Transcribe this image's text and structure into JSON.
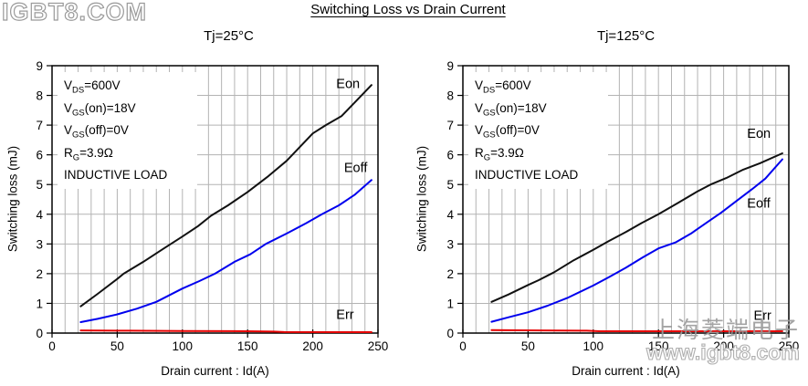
{
  "title": "Switching Loss vs Drain Current",
  "watermarks": {
    "top_left": "IGBT8.COM",
    "bottom_cn": "上海菱端电子",
    "bottom_url": "www.igbt8.com"
  },
  "colors": {
    "eon": "#111111",
    "eoff": "#0000ee",
    "err": "#e60000",
    "grid": "#b3b3b3",
    "frame": "#000000"
  },
  "charts": [
    {
      "annotations": [
        {
          "base": "V",
          "sub": "DS",
          "rest": "=600V"
        },
        {
          "base": "V",
          "sub": "GS",
          "rest": "(on)=18V"
        },
        {
          "base": "V",
          "sub": "GS",
          "rest": "(off)=0V"
        },
        {
          "base": "R",
          "sub": "G",
          "rest": "=3.9Ω"
        },
        {
          "base": "INDUCTIVE LOAD",
          "sub": "",
          "rest": ""
        }
      ]
    },
    {
      "annotations": [
        {
          "base": "V",
          "sub": "DS",
          "rest": "=600V"
        },
        {
          "base": "V",
          "sub": "GS",
          "rest": "(on)=18V"
        },
        {
          "base": "V",
          "sub": "GS",
          "rest": "(off)=0V"
        },
        {
          "base": "R",
          "sub": "G",
          "rest": "=3.9Ω"
        },
        {
          "base": "INDUCTIVE LOAD",
          "sub": "",
          "rest": ""
        }
      ]
    }
  ],
  "chart_data": [
    {
      "type": "line",
      "title": "Tj=25°C",
      "xlabel": "Drain current : Id(A)",
      "ylabel": "Switching loss (mJ)",
      "xlim": [
        0,
        250
      ],
      "ylim": [
        0,
        9
      ],
      "xticks": [
        "0",
        "50",
        "100",
        "150",
        "200",
        "250"
      ],
      "yticks": [
        "0",
        "1",
        "2",
        "3",
        "4",
        "5",
        "6",
        "7",
        "8",
        "9"
      ],
      "x_minor_step": 10,
      "y_grid_step": 1,
      "grid": true,
      "series": [
        {
          "name": "Eon",
          "color": "#111111",
          "label_pos": [
            218,
            8.25
          ],
          "points": [
            [
              22,
              0.9
            ],
            [
              35,
              1.32
            ],
            [
              50,
              1.82
            ],
            [
              55,
              2.0
            ],
            [
              70,
              2.4
            ],
            [
              85,
              2.83
            ],
            [
              100,
              3.25
            ],
            [
              112,
              3.6
            ],
            [
              122,
              3.95
            ],
            [
              135,
              4.3
            ],
            [
              150,
              4.75
            ],
            [
              165,
              5.25
            ],
            [
              180,
              5.8
            ],
            [
              200,
              6.72
            ],
            [
              210,
              7.0
            ],
            [
              222,
              7.3
            ],
            [
              233,
              7.8
            ],
            [
              245,
              8.35
            ]
          ]
        },
        {
          "name": "Eoff",
          "color": "#0000ee",
          "label_pos": [
            224,
            5.42
          ],
          "points": [
            [
              22,
              0.37
            ],
            [
              35,
              0.48
            ],
            [
              50,
              0.63
            ],
            [
              65,
              0.82
            ],
            [
              80,
              1.05
            ],
            [
              100,
              1.5
            ],
            [
              113,
              1.75
            ],
            [
              125,
              2.0
            ],
            [
              140,
              2.4
            ],
            [
              152,
              2.65
            ],
            [
              164,
              3.0
            ],
            [
              180,
              3.35
            ],
            [
              195,
              3.7
            ],
            [
              207,
              4.0
            ],
            [
              220,
              4.3
            ],
            [
              232,
              4.65
            ],
            [
              245,
              5.15
            ]
          ]
        },
        {
          "name": "Err",
          "color": "#e60000",
          "label_pos": [
            218,
            0.48
          ],
          "points": [
            [
              22,
              0.09
            ],
            [
              60,
              0.08
            ],
            [
              100,
              0.07
            ],
            [
              150,
              0.06
            ],
            [
              170,
              0.05
            ],
            [
              178,
              0.035
            ],
            [
              245,
              0.03
            ]
          ]
        }
      ]
    },
    {
      "type": "line",
      "title": "Tj=125°C",
      "xlabel": "Drain current : Id(A)",
      "ylabel": "Switching loss (mJ)",
      "xlim": [
        0,
        250
      ],
      "ylim": [
        0,
        9
      ],
      "xticks": [
        "0",
        "50",
        "100",
        "150",
        "200",
        "250"
      ],
      "yticks": [
        "0",
        "1",
        "2",
        "3",
        "4",
        "5",
        "6",
        "7",
        "8",
        "9"
      ],
      "x_minor_step": 10,
      "y_grid_step": 1,
      "grid": true,
      "series": [
        {
          "name": "Eon",
          "color": "#111111",
          "label_pos": [
            218,
            6.58
          ],
          "points": [
            [
              22,
              1.05
            ],
            [
              35,
              1.3
            ],
            [
              50,
              1.62
            ],
            [
              58,
              1.78
            ],
            [
              70,
              2.05
            ],
            [
              85,
              2.45
            ],
            [
              100,
              2.8
            ],
            [
              112,
              3.1
            ],
            [
              125,
              3.4
            ],
            [
              137,
              3.7
            ],
            [
              150,
              4.0
            ],
            [
              165,
              4.38
            ],
            [
              180,
              4.77
            ],
            [
              190,
              5.0
            ],
            [
              202,
              5.22
            ],
            [
              215,
              5.5
            ],
            [
              228,
              5.72
            ],
            [
              245,
              6.05
            ]
          ]
        },
        {
          "name": "Eoff",
          "color": "#0000ee",
          "label_pos": [
            218,
            4.22
          ],
          "points": [
            [
              22,
              0.38
            ],
            [
              35,
              0.53
            ],
            [
              50,
              0.7
            ],
            [
              65,
              0.92
            ],
            [
              80,
              1.18
            ],
            [
              100,
              1.6
            ],
            [
              112,
              1.88
            ],
            [
              125,
              2.2
            ],
            [
              138,
              2.55
            ],
            [
              150,
              2.85
            ],
            [
              163,
              3.05
            ],
            [
              175,
              3.35
            ],
            [
              188,
              3.75
            ],
            [
              198,
              4.05
            ],
            [
              210,
              4.45
            ],
            [
              222,
              4.85
            ],
            [
              232,
              5.2
            ],
            [
              245,
              5.85
            ]
          ]
        },
        {
          "name": "Err",
          "color": "#e60000",
          "label_pos": [
            223,
            0.45
          ],
          "points": [
            [
              22,
              0.1
            ],
            [
              60,
              0.09
            ],
            [
              95,
              0.08
            ],
            [
              105,
              0.06
            ],
            [
              150,
              0.06
            ],
            [
              200,
              0.06
            ],
            [
              245,
              0.06
            ]
          ]
        }
      ]
    }
  ]
}
